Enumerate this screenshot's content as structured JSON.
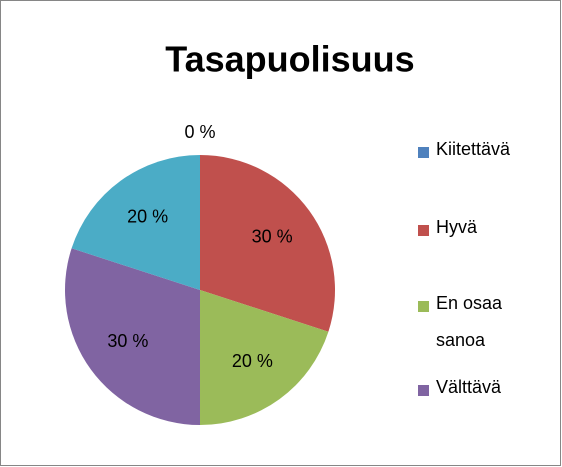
{
  "chart_data": {
    "type": "pie",
    "title": "Tasapuolisuus",
    "categories": [
      "Kiitettävä",
      "Hyvä",
      "En osaa sanoa",
      "Välttävä",
      null
    ],
    "values": [
      0,
      30,
      20,
      30,
      20
    ],
    "value_labels": [
      "0 %",
      "30 %",
      "20 %",
      "30 %",
      "20 %"
    ],
    "colors": [
      "#4f81bd",
      "#c0504d",
      "#9bbb59",
      "#8064a2",
      "#4bacc6"
    ],
    "legend": "right"
  }
}
